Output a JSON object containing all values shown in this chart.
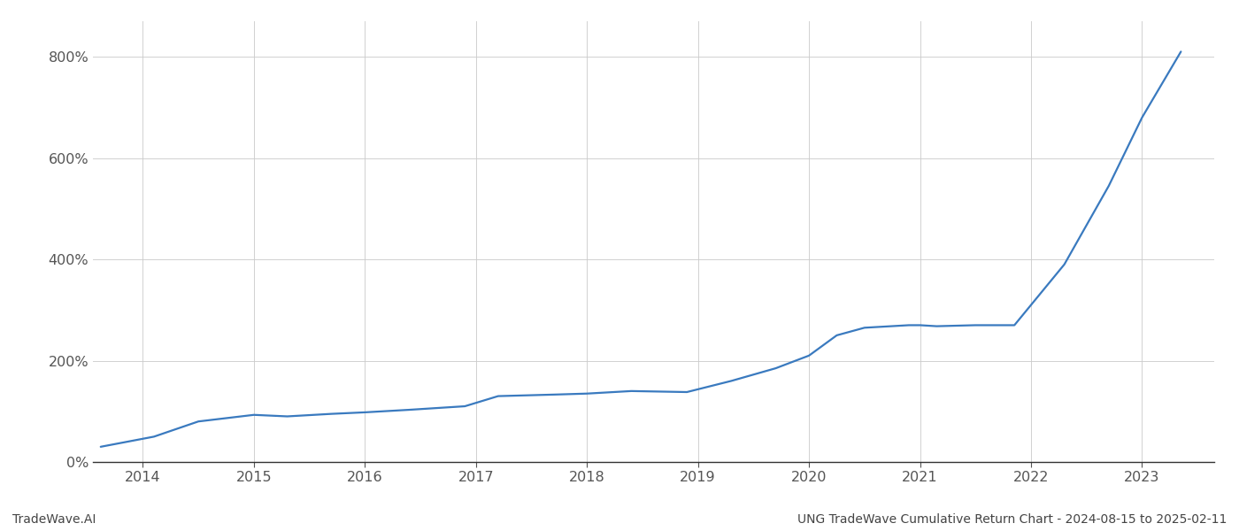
{
  "title": "UNG TradeWave Cumulative Return Chart - 2024-08-15 to 2025-02-11",
  "watermark": "TradeWave.AI",
  "line_color": "#3a7abf",
  "background_color": "#ffffff",
  "grid_color": "#cccccc",
  "x_years": [
    2014,
    2015,
    2016,
    2017,
    2018,
    2019,
    2020,
    2021,
    2022,
    2023
  ],
  "x_data": [
    2013.62,
    2014.1,
    2014.5,
    2015.0,
    2015.3,
    2015.7,
    2016.0,
    2016.4,
    2016.9,
    2017.2,
    2017.7,
    2018.0,
    2018.4,
    2018.9,
    2019.3,
    2019.7,
    2020.0,
    2020.25,
    2020.5,
    2020.9,
    2021.0,
    2021.15,
    2021.5,
    2021.85,
    2022.3,
    2022.7,
    2023.0,
    2023.35
  ],
  "y_data": [
    30,
    50,
    80,
    93,
    90,
    95,
    98,
    103,
    110,
    130,
    133,
    135,
    140,
    138,
    160,
    185,
    210,
    250,
    265,
    270,
    270,
    268,
    270,
    270,
    390,
    545,
    680,
    810
  ],
  "ylim": [
    0,
    870
  ],
  "yticks": [
    0,
    200,
    400,
    600,
    800
  ],
  "xlim": [
    2013.55,
    2023.65
  ],
  "line_width": 1.6,
  "title_fontsize": 10,
  "watermark_fontsize": 10,
  "tick_fontsize": 11.5,
  "tick_color": "#555555",
  "spine_color": "#999999",
  "footer_color": "#444444"
}
